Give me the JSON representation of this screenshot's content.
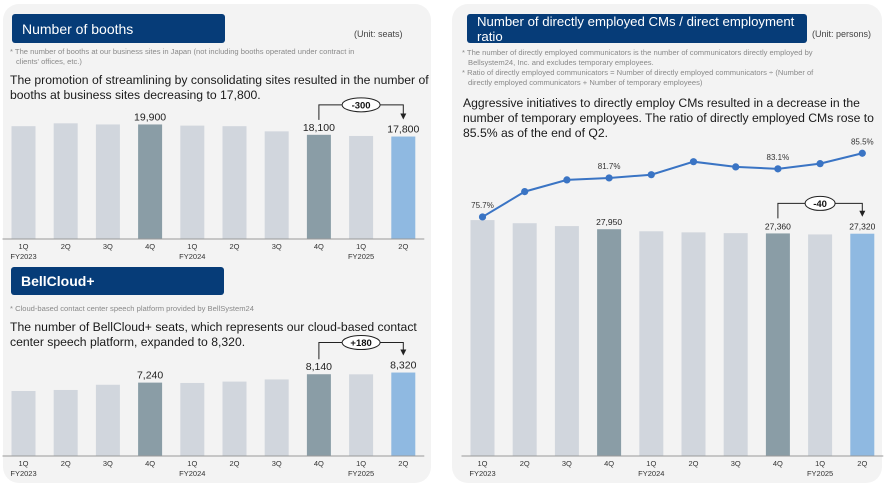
{
  "colors": {
    "header_bg": "#063c78",
    "bar_default": "#d1d6dd",
    "bar_q4": "#8a9da6",
    "bar_latest": "#8fb9e1",
    "line": "#3a74c4",
    "axis": "#999999"
  },
  "booths": {
    "title": "Number of booths",
    "unit": "(Unit: seats)",
    "note_line1": "* The number of booths at our business sites in Japan (not including  booths operated under contract in",
    "note_line2": "  clients' offices, etc.)",
    "lead_line1": "The promotion of streamlining by consolidating sites resulted in the number of",
    "lead_line2": "booths at business sites decreasing to 17,800.",
    "change_label": "-300"
  },
  "bellcloud": {
    "title": "BellCloud+",
    "note": "* Cloud-based contact center speech platform provided by BellSystem24",
    "lead_line1": "The number of BellCloud+ seats, which represents our cloud-based contact",
    "lead_line2": "center speech platform, expanded to 8,320.",
    "change_label": "+180"
  },
  "cms": {
    "title": "Number of directly employed CMs / direct employment ratio",
    "unit": "(Unit: persons)",
    "note1_line1": "* The number of directly employed communicators is the number of communicators directly employed by",
    "note1_line2": "  Bellsystem24, Inc. and excludes temporary employees.",
    "note2_line1": "* Ratio of directly employed communicators = Number of directly employed communicators ÷ (Number of",
    "note2_line2": "  directly employed communicators + Number of temporary employees)",
    "lead_line1": "Aggressive initiatives to directly employ CMs resulted in a decrease in the",
    "lead_line2": "number of temporary employees. The ratio of directly employed CMs rose to",
    "lead_line3": "85.5% as of the end of Q2.",
    "change_label": "-40"
  },
  "chart_data": [
    {
      "type": "bar",
      "title": "Number of booths",
      "unit": "seats",
      "categories": [
        "1Q",
        "2Q",
        "3Q",
        "4Q",
        "1Q",
        "2Q",
        "3Q",
        "4Q",
        "1Q",
        "2Q"
      ],
      "fiscal_year_labels": [
        {
          "index": 0,
          "label": "FY2023"
        },
        {
          "index": 4,
          "label": "FY2024"
        },
        {
          "index": 8,
          "label": "FY2025"
        }
      ],
      "values": [
        19600,
        20100,
        19900,
        19900,
        19700,
        19600,
        18700,
        18100,
        17900,
        17800
      ],
      "data_labels": [
        {
          "index": 3,
          "label": "19,900"
        },
        {
          "index": 7,
          "label": "18,100"
        },
        {
          "index": 9,
          "label": "17,800"
        }
      ],
      "highlight": {
        "q4": [
          3,
          7
        ],
        "latest": 9
      },
      "annotation": {
        "from": 7,
        "to": 9,
        "label": "-300"
      },
      "ylim": [
        0,
        20500
      ]
    },
    {
      "type": "bar",
      "title": "BellCloud+",
      "unit": "seats",
      "categories": [
        "1Q",
        "2Q",
        "3Q",
        "4Q",
        "1Q",
        "2Q",
        "3Q",
        "4Q",
        "1Q",
        "2Q"
      ],
      "fiscal_year_labels": [
        {
          "index": 0,
          "label": "FY2023"
        },
        {
          "index": 4,
          "label": "FY2024"
        },
        {
          "index": 8,
          "label": "FY2025"
        }
      ],
      "values": [
        6340,
        6450,
        7010,
        7240,
        7200,
        7350,
        7580,
        8140,
        8130,
        8320
      ],
      "data_labels": [
        {
          "index": 3,
          "label": "7,240"
        },
        {
          "index": 7,
          "label": "8,140"
        },
        {
          "index": 9,
          "label": "8,320"
        }
      ],
      "highlight": {
        "q4": [
          3,
          7
        ],
        "latest": 9
      },
      "annotation": {
        "from": 7,
        "to": 9,
        "label": "+180"
      },
      "ylim": [
        -630,
        8700
      ]
    },
    {
      "type": "bar",
      "title": "Number of directly employed CMs / direct employment ratio",
      "unit": "persons",
      "categories": [
        "1Q",
        "2Q",
        "3Q",
        "4Q",
        "1Q",
        "2Q",
        "3Q",
        "4Q",
        "1Q",
        "2Q"
      ],
      "fiscal_year_labels": [
        {
          "index": 0,
          "label": "FY2023"
        },
        {
          "index": 4,
          "label": "FY2024"
        },
        {
          "index": 8,
          "label": "FY2025"
        }
      ],
      "series": [
        {
          "name": "Directly employed CMs",
          "type": "bar",
          "values": [
            29230,
            28790,
            28390,
            27950,
            27660,
            27510,
            27400,
            27360,
            27220,
            27320
          ]
        },
        {
          "name": "Direct employment ratio (%)",
          "type": "line",
          "values": [
            75.7,
            79.6,
            81.4,
            81.7,
            82.2,
            84.2,
            83.4,
            83.1,
            83.9,
            85.5
          ]
        }
      ],
      "data_labels": [
        {
          "index": 3,
          "label": "27,950"
        },
        {
          "index": 7,
          "label": "27,360"
        },
        {
          "index": 9,
          "label": "27,320"
        }
      ],
      "line_labels": [
        {
          "index": 0,
          "label": "75.7%"
        },
        {
          "index": 3,
          "label": "81.7%"
        },
        {
          "index": 7,
          "label": "83.1%"
        },
        {
          "index": 9,
          "label": "85.5%"
        }
      ],
      "highlight": {
        "q4": [
          3,
          7
        ],
        "latest": 9
      },
      "annotation": {
        "from": 7,
        "to": 9,
        "label": "-40"
      },
      "ylim": [
        -3800,
        29800
      ],
      "line_ylim": [
        60,
        92
      ]
    }
  ]
}
